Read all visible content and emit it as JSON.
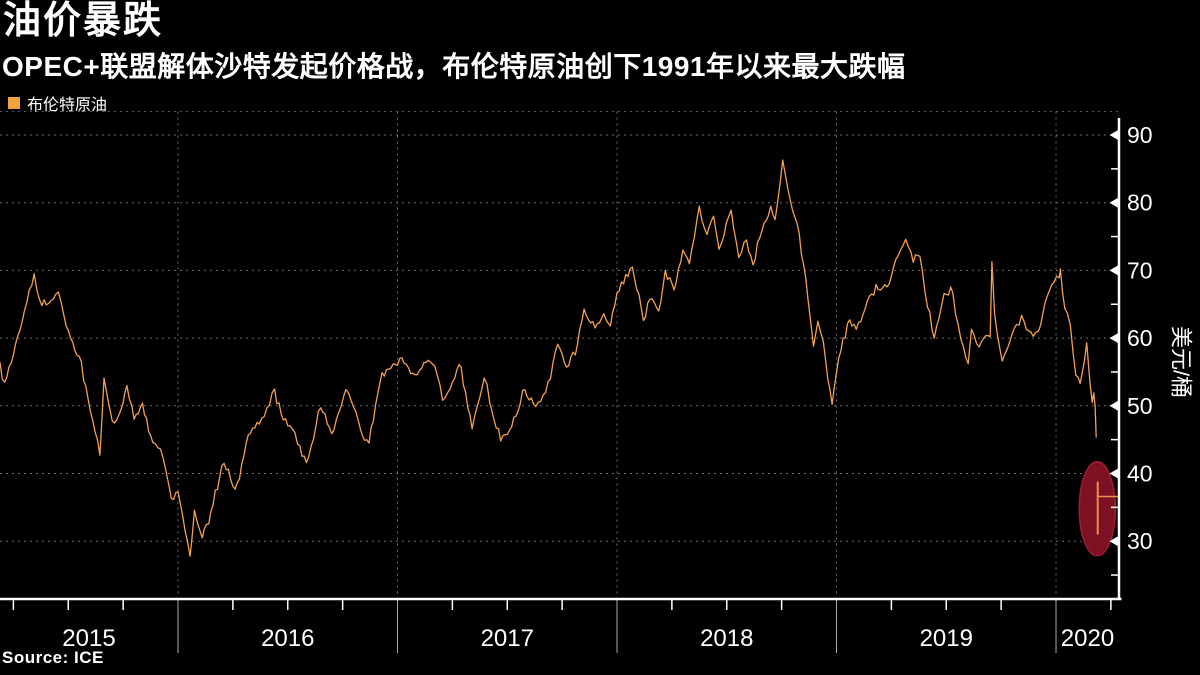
{
  "header": {
    "title": "油价暴跌",
    "subtitle": "OPEC+联盟解体沙特发起价格战，布伦特原油创下1991年以来最大跌幅"
  },
  "legend": {
    "label": "布伦特原油"
  },
  "source_label": "Source: ICE",
  "colors": {
    "background": "#000000",
    "text": "#ffffff",
    "series_line": "#F3A052",
    "legend_swatch": "#F2A33C",
    "gridline": "#6e6e6e",
    "plot_top_border": "#5a5a5a",
    "axis": "#ffffff",
    "year_divider": "#cccccc",
    "crash_ellipse_fill": "#7D1022",
    "crash_ellipse_stroke": "#A01D33",
    "crash_marker_line": "#E8924A"
  },
  "chart_data": {
    "type": "line",
    "title": "油价暴跌",
    "subtitle": "OPEC+联盟解体沙特发起价格战，布伦特原油创下1991年以来最大跌幅",
    "source": "Source: ICE",
    "x_axis": {
      "label_years": [
        "2015",
        "2016",
        "2017",
        "2018",
        "2019",
        "2020"
      ],
      "year_boundaries": [
        2016,
        2017,
        2018,
        2019,
        2020
      ],
      "range_decimal_years": [
        2015.189,
        2020.282
      ],
      "minor_tick_interval_years": 0.25,
      "grid": "dotted-vertical-at-year-boundaries"
    },
    "y_axis": {
      "label": "美元/桶",
      "side": "right",
      "major_ticks": [
        30,
        40,
        50,
        60,
        70,
        80,
        90
      ],
      "minor_ticks": [
        25,
        35,
        45,
        55,
        65,
        75,
        85
      ],
      "display_range": [
        21.5,
        92.3
      ],
      "grid": "dashed-horizontal-at-major-ticks"
    },
    "series": [
      {
        "name": "布伦特原油",
        "color": "#F3A052",
        "points": [
          [
            2015.189,
            56.4
          ],
          [
            2015.21,
            53.5
          ],
          [
            2015.25,
            57.5
          ],
          [
            2015.3,
            64.0
          ],
          [
            2015.345,
            69.5
          ],
          [
            2015.38,
            64.8
          ],
          [
            2015.42,
            65.5
          ],
          [
            2015.455,
            66.8
          ],
          [
            2015.49,
            61.8
          ],
          [
            2015.53,
            58.2
          ],
          [
            2015.56,
            56.5
          ],
          [
            2015.6,
            49.3
          ],
          [
            2015.644,
            42.7
          ],
          [
            2015.663,
            54.1
          ],
          [
            2015.7,
            47.8
          ],
          [
            2015.73,
            48.6
          ],
          [
            2015.767,
            53.0
          ],
          [
            2015.8,
            48.0
          ],
          [
            2015.838,
            50.4
          ],
          [
            2015.885,
            44.6
          ],
          [
            2015.92,
            43.6
          ],
          [
            2015.945,
            40.4
          ],
          [
            2015.97,
            36.3
          ],
          [
            2016.0,
            37.3
          ],
          [
            2016.02,
            34.0
          ],
          [
            2016.055,
            27.8
          ],
          [
            2016.075,
            34.6
          ],
          [
            2016.11,
            30.5
          ],
          [
            2016.15,
            34.4
          ],
          [
            2016.21,
            41.5
          ],
          [
            2016.26,
            37.7
          ],
          [
            2016.32,
            45.7
          ],
          [
            2016.37,
            47.3
          ],
          [
            2016.405,
            49.7
          ],
          [
            2016.44,
            52.5
          ],
          [
            2016.48,
            47.9
          ],
          [
            2016.52,
            46.6
          ],
          [
            2016.545,
            44.3
          ],
          [
            2016.585,
            41.6
          ],
          [
            2016.65,
            49.7
          ],
          [
            2016.7,
            45.9
          ],
          [
            2016.765,
            52.4
          ],
          [
            2016.8,
            49.8
          ],
          [
            2016.84,
            45.6
          ],
          [
            2016.87,
            44.5
          ],
          [
            2016.93,
            54.9
          ],
          [
            2016.99,
            56.1
          ],
          [
            2017.02,
            57.1
          ],
          [
            2017.08,
            54.6
          ],
          [
            2017.12,
            56.4
          ],
          [
            2017.17,
            55.9
          ],
          [
            2017.205,
            50.8
          ],
          [
            2017.24,
            52.5
          ],
          [
            2017.28,
            56.1
          ],
          [
            2017.31,
            52.0
          ],
          [
            2017.34,
            46.6
          ],
          [
            2017.395,
            54.1
          ],
          [
            2017.42,
            50.5
          ],
          [
            2017.47,
            44.8
          ],
          [
            2017.52,
            46.9
          ],
          [
            2017.58,
            52.4
          ],
          [
            2017.63,
            49.9
          ],
          [
            2017.675,
            52.0
          ],
          [
            2017.73,
            59.1
          ],
          [
            2017.77,
            55.7
          ],
          [
            2017.81,
            57.5
          ],
          [
            2017.85,
            64.3
          ],
          [
            2017.9,
            61.5
          ],
          [
            2017.94,
            63.6
          ],
          [
            2017.97,
            61.8
          ],
          [
            2018.0,
            66.7
          ],
          [
            2018.07,
            70.5
          ],
          [
            2018.12,
            62.6
          ],
          [
            2018.16,
            65.8
          ],
          [
            2018.19,
            64.0
          ],
          [
            2018.22,
            70.0
          ],
          [
            2018.26,
            67.1
          ],
          [
            2018.3,
            73.0
          ],
          [
            2018.33,
            71.0
          ],
          [
            2018.375,
            79.5
          ],
          [
            2018.41,
            75.3
          ],
          [
            2018.44,
            78.0
          ],
          [
            2018.465,
            73.1
          ],
          [
            2018.52,
            78.9
          ],
          [
            2018.555,
            71.9
          ],
          [
            2018.59,
            74.5
          ],
          [
            2018.62,
            70.8
          ],
          [
            2018.66,
            75.8
          ],
          [
            2018.7,
            79.5
          ],
          [
            2018.72,
            77.5
          ],
          [
            2018.755,
            86.3
          ],
          [
            2018.79,
            80.3
          ],
          [
            2018.83,
            75.5
          ],
          [
            2018.87,
            65.7
          ],
          [
            2018.895,
            58.8
          ],
          [
            2018.915,
            62.5
          ],
          [
            2018.94,
            59.5
          ],
          [
            2018.98,
            50.2
          ],
          [
            2019.0,
            54.9
          ],
          [
            2019.03,
            60.0
          ],
          [
            2019.06,
            62.7
          ],
          [
            2019.09,
            61.3
          ],
          [
            2019.16,
            66.5
          ],
          [
            2019.2,
            67.1
          ],
          [
            2019.24,
            68.0
          ],
          [
            2019.27,
            71.6
          ],
          [
            2019.315,
            74.6
          ],
          [
            2019.35,
            71.2
          ],
          [
            2019.38,
            72.1
          ],
          [
            2019.415,
            64.5
          ],
          [
            2019.445,
            60.0
          ],
          [
            2019.49,
            66.6
          ],
          [
            2019.53,
            66.7
          ],
          [
            2019.555,
            61.9
          ],
          [
            2019.6,
            56.2
          ],
          [
            2019.615,
            61.3
          ],
          [
            2019.65,
            58.7
          ],
          [
            2019.7,
            60.2
          ],
          [
            2019.708,
            71.3
          ],
          [
            2019.72,
            63.6
          ],
          [
            2019.755,
            56.6
          ],
          [
            2019.79,
            59.5
          ],
          [
            2019.82,
            62.0
          ],
          [
            2019.855,
            62.4
          ],
          [
            2019.885,
            60.9
          ],
          [
            2019.92,
            61.0
          ],
          [
            2019.95,
            65.2
          ],
          [
            2019.99,
            68.2
          ],
          [
            2020.015,
            68.9
          ],
          [
            2020.02,
            70.2
          ],
          [
            2020.04,
            64.4
          ],
          [
            2020.065,
            62.0
          ],
          [
            2020.09,
            54.5
          ],
          [
            2020.11,
            53.3
          ],
          [
            2020.14,
            59.3
          ],
          [
            2020.155,
            53.4
          ],
          [
            2020.165,
            50.5
          ],
          [
            2020.172,
            51.9
          ],
          [
            2020.178,
            50.0
          ],
          [
            2020.183,
            45.3
          ]
        ]
      }
    ],
    "crash_marker": {
      "date_decimal_year": 2020.19,
      "high": 38.8,
      "low": 31.0,
      "last": 36.6
    },
    "highlight_ellipse": {
      "center_decimal_year": 2020.188,
      "center_value": 34.8,
      "radius_years": 0.082,
      "radius_value": 6.95
    }
  }
}
